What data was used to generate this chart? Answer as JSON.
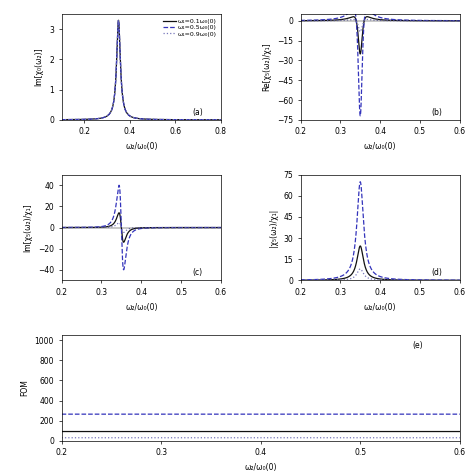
{
  "omega0": 0.35,
  "gamma": 0.02,
  "omega1_values": [
    0.1,
    0.5,
    0.9
  ],
  "omega1_labels": [
    "ω₁=0.1ω₀(0)",
    "ω₁=0.5ω₀(0)",
    "ω₁=0.9ω₀(0)"
  ],
  "line_styles": [
    "-",
    "--",
    ":"
  ],
  "line_colors": [
    "#111111",
    "#3333bb",
    "#7777bb"
  ],
  "subplot_labels": [
    "(a)",
    "(b)",
    "(c)",
    "(d)",
    "(e)"
  ],
  "xlim_a": [
    0.1,
    0.8
  ],
  "xlim_bcde": [
    0.2,
    0.6
  ],
  "xticks_a": [
    0.2,
    0.4,
    0.6,
    0.8
  ],
  "xticks_bcde": [
    0.2,
    0.3,
    0.4,
    0.5,
    0.6
  ],
  "xlabel": "ω₂/ω₀(0)",
  "ylabel_a": "Im[χ₀(ω₂)]",
  "ylabel_b": "Re[χ₅(ω₂)/χ₁]",
  "ylabel_c": "Im[χ₅(ω₂)/χ₁]",
  "ylabel_d": "|χ₅(ω₂)/χ₁|",
  "ylabel_e": "FOM",
  "ylim_a": [
    0,
    3.5
  ],
  "ylim_b": [
    -75,
    5
  ],
  "ylim_c": [
    -50,
    50
  ],
  "ylim_d": [
    0,
    75
  ],
  "ylim_e": [
    0,
    1050
  ],
  "yticks_b": [
    0,
    -15,
    -30,
    -45,
    -60,
    -75
  ],
  "yticks_c": [
    -40,
    -20,
    0,
    20,
    40
  ],
  "yticks_d": [
    0,
    15,
    30,
    45,
    60,
    75
  ],
  "yticks_e": [
    0,
    200,
    400,
    600,
    800,
    1000
  ],
  "lw": 0.9,
  "fontsize": 5.5,
  "legend_fontsize": 4.5
}
